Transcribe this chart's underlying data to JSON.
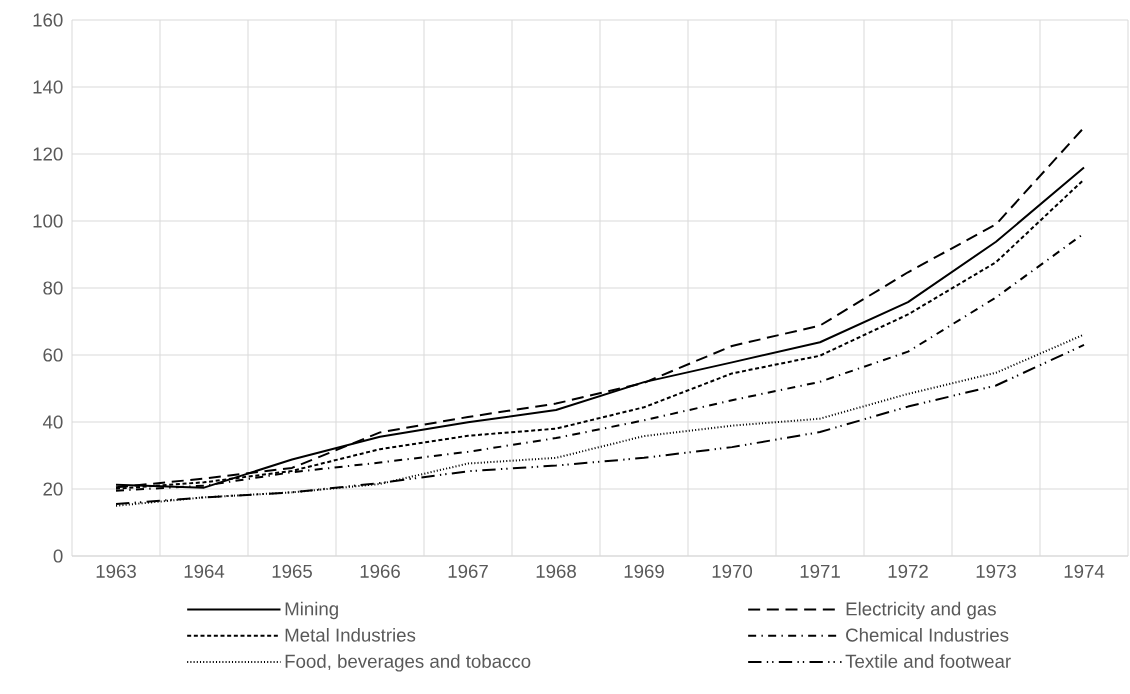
{
  "chart_data": {
    "type": "line",
    "categories": [
      "1963",
      "1964",
      "1965",
      "1966",
      "1967",
      "1968",
      "1969",
      "1970",
      "1971",
      "1972",
      "1973",
      "1974"
    ],
    "series": [
      {
        "name": "Mining",
        "color": "#000000",
        "line_style": "solid",
        "values": [
          21.3,
          20.4,
          28.8,
          35.6,
          39.9,
          43.6,
          51.9,
          57.8,
          63.8,
          75.8,
          93.8,
          116
        ]
      },
      {
        "name": "Electricity and gas",
        "color": "#000000",
        "line_style": "longdashed",
        "values": [
          20.5,
          23.1,
          26.3,
          36.9,
          41.5,
          45.5,
          51.7,
          62.7,
          68.8,
          84.7,
          99,
          127.9
        ]
      },
      {
        "name": "Metal Industries",
        "color": "#000000",
        "line_style": "dashed",
        "values": [
          20.1,
          22,
          25.4,
          31.9,
          35.9,
          38,
          44.4,
          54.5,
          59.8,
          72.1,
          87.7,
          112.4
        ]
      },
      {
        "name": "Chemical Industries",
        "color": "#000000",
        "line_style": "dashdotted",
        "values": [
          19.5,
          21,
          25,
          27.9,
          31.1,
          35.2,
          40.5,
          46.5,
          52,
          61,
          77.2,
          96.3
        ]
      },
      {
        "name": "Food, beverages and tobacco",
        "color": "#000000",
        "line_style": "dotted",
        "values": [
          15,
          17.5,
          19,
          21.5,
          27.6,
          29.3,
          35.8,
          38.9,
          41,
          48.4,
          54.7,
          66.1
        ]
      },
      {
        "name": "Textile and footwear",
        "color": "#000000",
        "line_style": "longdashdotdotted",
        "values": [
          15.5,
          17.5,
          19,
          21.8,
          25.3,
          27,
          29.3,
          32.5,
          37,
          44.6,
          50.9,
          63
        ]
      }
    ],
    "ylim": [
      0,
      160
    ],
    "yticks": [
      0,
      20,
      40,
      60,
      80,
      100,
      120,
      140,
      160
    ],
    "grid": true,
    "legend": "bottom",
    "marker": "none"
  }
}
